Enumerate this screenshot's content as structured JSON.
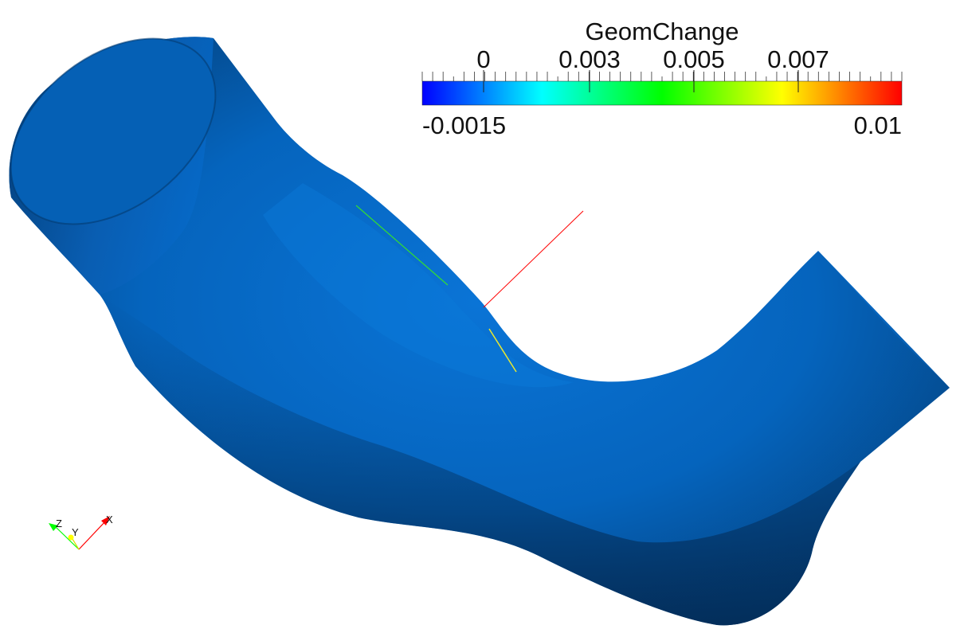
{
  "legend": {
    "title": "GeomChange",
    "tick_labels": [
      "0",
      "0.003",
      "0.005",
      "0.007"
    ],
    "range_min": "-0.0015",
    "range_max": "0.01",
    "colors": [
      "#0000ff",
      "#00ffff",
      "#00ff00",
      "#ffff00",
      "#ff0000"
    ]
  },
  "orientation_axes": {
    "x_label": "X",
    "y_label": "Y",
    "z_label": "Z",
    "x_color": "#ff0000",
    "y_color": "#ffff00",
    "z_color": "#00ff00"
  },
  "surface": {
    "color": "#0568c4",
    "shadow_color": "#043a72"
  }
}
